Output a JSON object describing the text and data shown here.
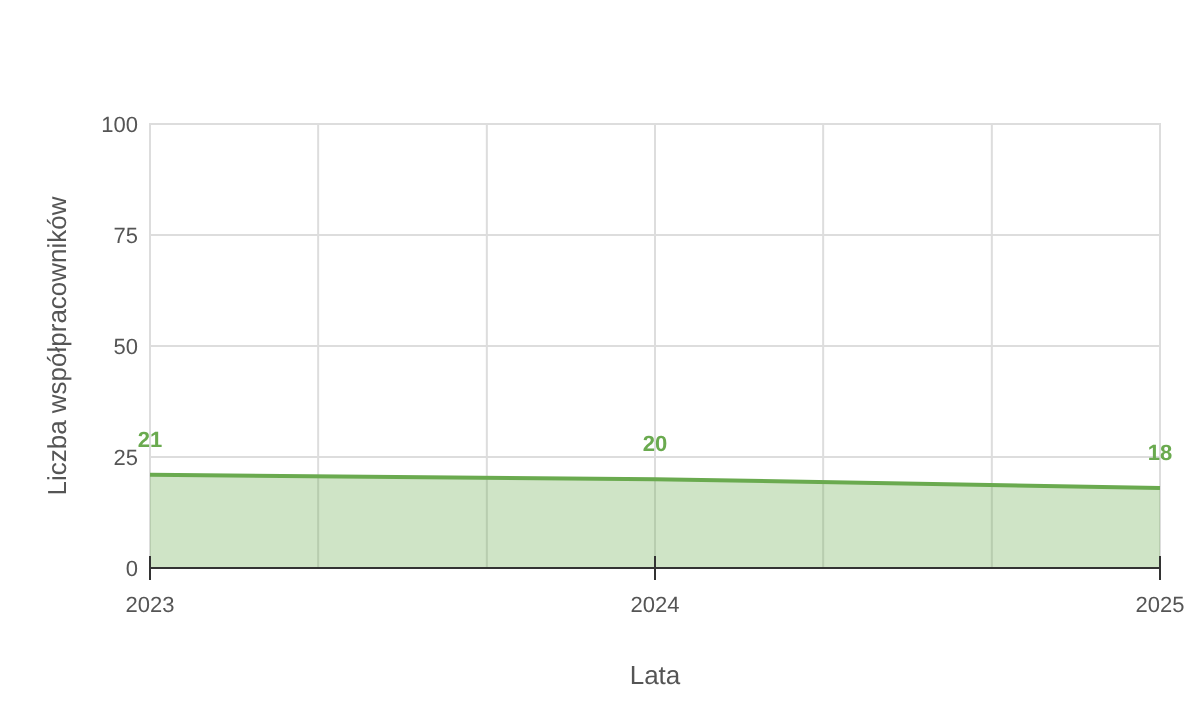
{
  "chart_data": {
    "type": "area",
    "xlabel": "Lata",
    "ylabel": "Liczba współpracowników",
    "x": [
      2023,
      2024,
      2025
    ],
    "series": [
      {
        "color": "#6aaa4f",
        "values": [
          21,
          20,
          18
        ]
      }
    ],
    "xlim": [
      2023,
      2025
    ],
    "xticks": [
      2023,
      {
        "value": 2023.333,
        "label": null
      },
      {
        "value": 2023.667,
        "label": null
      },
      2024,
      {
        "value": 2024.333,
        "label": null
      },
      {
        "value": 2024.667,
        "label": null
      },
      2025
    ],
    "ylim": [
      0,
      100
    ],
    "yticks": [
      0,
      25,
      50,
      75,
      100
    ],
    "grid": true,
    "data_labels": true
  }
}
